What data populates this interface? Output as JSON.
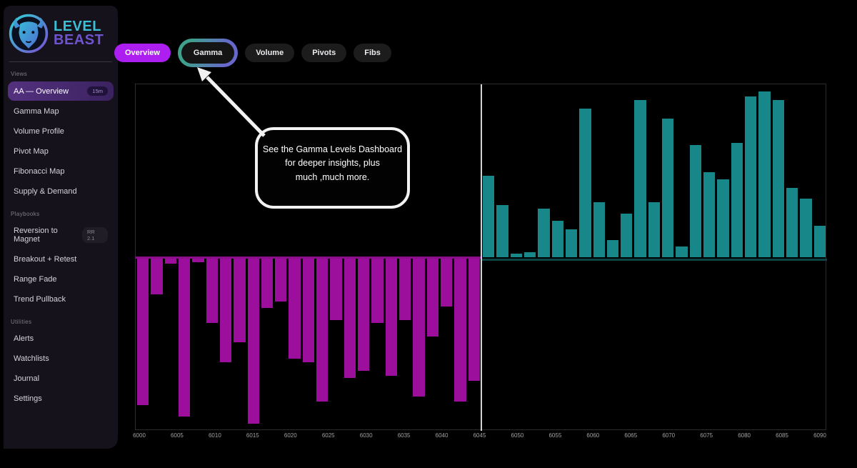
{
  "app": {
    "brand_line1": "LEVEL",
    "brand_line2": "BEAST"
  },
  "sidebar": {
    "sections": [
      {
        "label": "Views",
        "items": [
          {
            "label": "AA — Overview",
            "badge": "15m",
            "active": true
          },
          {
            "label": "Gamma Map"
          },
          {
            "label": "Volume Profile"
          },
          {
            "label": "Pivot Map"
          },
          {
            "label": "Fibonacci Map"
          },
          {
            "label": "Supply & Demand"
          }
        ]
      },
      {
        "label": "Playbooks",
        "items": [
          {
            "label": "Reversion to Magnet",
            "badge": "RR 2.1"
          },
          {
            "label": "Breakout + Retest"
          },
          {
            "label": "Range Fade"
          },
          {
            "label": "Trend Pullback"
          }
        ]
      },
      {
        "label": "Utilities",
        "items": [
          {
            "label": "Alerts"
          },
          {
            "label": "Watchlists"
          },
          {
            "label": "Journal"
          },
          {
            "label": "Settings"
          }
        ]
      }
    ]
  },
  "tabs": [
    {
      "label": "Overview",
      "active": true
    },
    {
      "label": "Gamma",
      "ringed": true
    },
    {
      "label": "Volume"
    },
    {
      "label": "Pivots"
    },
    {
      "label": "Fibs"
    }
  ],
  "callout": {
    "lines": [
      "See the Gamma Levels Dashboard",
      "for deeper insights, plus",
      "much ,much more."
    ]
  },
  "colors": {
    "accent_purple": "#ac1ff0",
    "bar_negative": "#9c0f9c",
    "bar_positive": "#17878a",
    "brand_teal": "#38c1d6",
    "brand_purple": "#6e55cf"
  },
  "chart_data": {
    "type": "bar",
    "title": "",
    "xlabel": "",
    "ylabel": "",
    "x_range": [
      6000,
      6090
    ],
    "x_ticks": [
      6000,
      6005,
      6010,
      6015,
      6020,
      6025,
      6030,
      6035,
      6040,
      6045,
      6050,
      6055,
      6060,
      6065,
      6070,
      6075,
      6080,
      6085,
      6090
    ],
    "grid": false,
    "legend": false,
    "baseline": 0,
    "series": [
      {
        "name": "negative-gamma-left-half",
        "color": "#9c0f9c",
        "x_start": 6000,
        "x_step": 1.8,
        "values": [
          -0.86,
          -0.21,
          -0.03,
          -0.93,
          -0.02,
          -0.38,
          -0.61,
          -0.49,
          -0.97,
          -0.29,
          -0.25,
          -0.59,
          -0.61,
          -0.84,
          -0.36,
          -0.7,
          -0.66,
          -0.38,
          -0.69,
          -0.36,
          -0.81,
          -0.46,
          -0.28,
          -0.84,
          -0.72
        ]
      },
      {
        "name": "positive-gamma-right-half",
        "color": "#17878a",
        "x_start": 6045,
        "x_step": 1.8,
        "values": [
          0.47,
          0.3,
          0.02,
          0.03,
          0.28,
          0.21,
          0.16,
          0.86,
          0.32,
          0.1,
          0.25,
          0.91,
          0.32,
          0.8,
          0.06,
          0.65,
          0.49,
          0.45,
          0.66,
          0.93,
          0.96,
          0.91,
          0.4,
          0.34,
          0.18
        ]
      }
    ]
  }
}
